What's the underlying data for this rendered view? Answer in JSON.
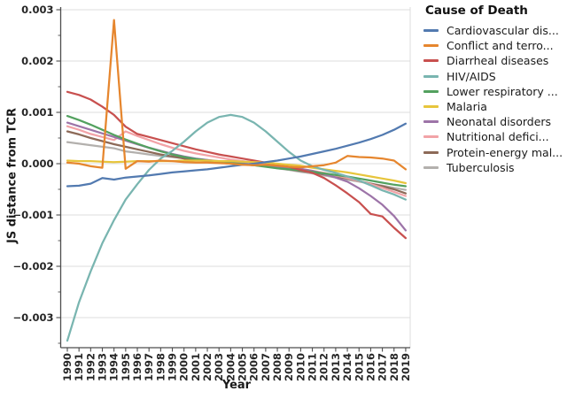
{
  "chart_data": {
    "type": "line",
    "title": "",
    "xlabel": "Year",
    "ylabel": "JS distance from TCR",
    "legend_title": "Cause of Death",
    "legend_position": "right",
    "grid": "horizontal",
    "background": "#ffffff",
    "gridline_color": "#dcdcdc",
    "spine_color": "#4d4d4d",
    "x": [
      1990,
      1991,
      1992,
      1993,
      1994,
      1995,
      1996,
      1997,
      1998,
      1999,
      2000,
      2001,
      2002,
      2003,
      2004,
      2005,
      2006,
      2007,
      2008,
      2009,
      2010,
      2011,
      2012,
      2013,
      2014,
      2015,
      2016,
      2017,
      2018,
      2019
    ],
    "x_tick_labels": [
      "1990",
      "1991",
      "1992",
      "1993",
      "1994",
      "1995",
      "1996",
      "1997",
      "1998",
      "1999",
      "2000",
      "2001",
      "2002",
      "2003",
      "2004",
      "2005",
      "2006",
      "2007",
      "2008",
      "2009",
      "2010",
      "2011",
      "2012",
      "2013",
      "2014",
      "2015",
      "2016",
      "2017",
      "2018",
      "2019"
    ],
    "y_ticks": [
      0.003,
      0.002,
      0.001,
      0.0,
      -0.001,
      -0.002,
      -0.003
    ],
    "y_tick_labels": [
      "0.003",
      "0.002",
      "0.001",
      "0.000",
      "−0.001",
      "−0.002",
      "−0.003"
    ],
    "y_minor_ticks": [
      0.0025,
      0.0015,
      0.0005,
      -0.0005,
      -0.0015,
      -0.0025,
      -0.0035
    ],
    "ylim": [
      -0.0036,
      0.00305
    ],
    "series": [
      {
        "name": "Cardiovascular dis...",
        "color": "#527ab0",
        "values": [
          -0.00044,
          -0.00043,
          -0.00039,
          -0.00028,
          -0.00031,
          -0.00027,
          -0.00025,
          -0.00023,
          -0.0002,
          -0.00017,
          -0.00015,
          -0.00013,
          -0.00011,
          -8e-05,
          -5e-05,
          -2e-05,
          0.0,
          3e-05,
          6e-05,
          0.0001,
          0.00014,
          0.00019,
          0.00024,
          0.00029,
          0.00035,
          0.00041,
          0.00048,
          0.00056,
          0.00066,
          0.00078
        ]
      },
      {
        "name": "Conflict and terro...",
        "color": "#e6862e",
        "values": [
          2e-05,
          0.0,
          -5e-05,
          -8e-05,
          0.0028,
          -0.0001,
          5e-05,
          4e-05,
          6e-05,
          5e-05,
          3e-05,
          2e-05,
          2e-05,
          1e-05,
          0.0,
          -2e-05,
          -3e-05,
          -2e-05,
          -4e-05,
          -6e-05,
          -7e-05,
          -5e-05,
          -3e-05,
          2e-05,
          0.00015,
          0.00013,
          0.00012,
          0.0001,
          6e-05,
          -0.00011
        ]
      },
      {
        "name": "Diarrheal diseases",
        "color": "#c8504f",
        "values": [
          0.0014,
          0.00134,
          0.00125,
          0.00111,
          0.00095,
          0.00072,
          0.00058,
          0.00052,
          0.00046,
          0.0004,
          0.00034,
          0.00028,
          0.00023,
          0.00018,
          0.00014,
          0.0001,
          6e-05,
          2e-05,
          -2e-05,
          -6e-05,
          -0.00012,
          -0.00018,
          -0.00028,
          -0.00042,
          -0.00058,
          -0.00075,
          -0.00098,
          -0.00103,
          -0.00125,
          -0.00145
        ]
      },
      {
        "name": "HIV/AIDS",
        "color": "#79b5b0",
        "values": [
          -0.00345,
          -0.0027,
          -0.0021,
          -0.00155,
          -0.0011,
          -0.0007,
          -0.0004,
          -0.00012,
          0.0001,
          0.00025,
          0.00043,
          0.00063,
          0.0008,
          0.00091,
          0.00095,
          0.00091,
          0.0008,
          0.00063,
          0.00043,
          0.00023,
          6e-05,
          -5e-05,
          -0.00012,
          -0.00018,
          -0.00025,
          -0.00033,
          -0.00042,
          -0.00052,
          -0.0006,
          -0.0007
        ]
      },
      {
        "name": "Lower respiratory ...",
        "color": "#53a15f",
        "values": [
          0.00093,
          0.00085,
          0.00076,
          0.00066,
          0.00056,
          0.00047,
          0.00039,
          0.00031,
          0.00024,
          0.00018,
          0.00013,
          9e-05,
          6e-05,
          3e-05,
          1e-05,
          -1e-05,
          -3e-05,
          -6e-05,
          -9e-05,
          -0.00011,
          -0.00013,
          -0.00016,
          -0.00019,
          -0.00022,
          -0.00025,
          -0.00029,
          -0.00033,
          -0.00037,
          -0.00041,
          -0.00044
        ]
      },
      {
        "name": "Malaria",
        "color": "#e7c53c",
        "values": [
          6e-05,
          5e-05,
          5e-05,
          4e-05,
          3e-05,
          4e-05,
          5e-05,
          5e-05,
          5e-05,
          5e-05,
          6e-05,
          6e-05,
          6e-05,
          5e-05,
          5e-05,
          4e-05,
          3e-05,
          2e-05,
          0.0,
          -2e-05,
          -4e-05,
          -8e-05,
          -0.00011,
          -0.00014,
          -0.00017,
          -0.00021,
          -0.00025,
          -0.00029,
          -0.00033,
          -0.00038
        ]
      },
      {
        "name": "Neonatal disorders",
        "color": "#9d74a8",
        "values": [
          0.0008,
          0.00073,
          0.00066,
          0.00059,
          0.00052,
          0.00045,
          0.00038,
          0.00031,
          0.00025,
          0.00019,
          0.00014,
          0.0001,
          7e-05,
          4e-05,
          2e-05,
          0.0,
          -2e-05,
          -4e-05,
          -6e-05,
          -8e-05,
          -0.0001,
          -0.00014,
          -0.0002,
          -0.00027,
          -0.00035,
          -0.00048,
          -0.00063,
          -0.0008,
          -0.00102,
          -0.0013
        ]
      },
      {
        "name": "Nutritional defici...",
        "color": "#f2a3a7",
        "values": [
          0.00073,
          0.00066,
          0.00058,
          0.00052,
          0.00046,
          0.00063,
          0.00054,
          0.00046,
          0.00038,
          0.00031,
          0.00025,
          0.0002,
          0.00016,
          0.00012,
          8e-05,
          5e-05,
          2e-05,
          -1e-05,
          -4e-05,
          -7e-05,
          -0.0001,
          -0.00014,
          -0.00018,
          -0.00023,
          -0.00028,
          -0.00034,
          -0.0004,
          -0.00047,
          -0.00055,
          -0.00063
        ]
      },
      {
        "name": "Protein-energy mal...",
        "color": "#8d6a58",
        "values": [
          0.00063,
          0.00057,
          0.0005,
          0.00044,
          0.00038,
          0.00033,
          0.00028,
          0.00023,
          0.00018,
          0.00014,
          0.0001,
          7e-05,
          5e-05,
          3e-05,
          1e-05,
          -1e-05,
          -3e-05,
          -5e-05,
          -8e-05,
          -0.00011,
          -0.00014,
          -0.00017,
          -0.00021,
          -0.00025,
          -0.00029,
          -0.00034,
          -0.00039,
          -0.00044,
          -0.0005,
          -0.00058
        ]
      },
      {
        "name": "Tuberculosis",
        "color": "#b3b0ad",
        "values": [
          0.00042,
          0.00039,
          0.00036,
          0.00033,
          0.0003,
          0.00024,
          0.00021,
          0.00018,
          0.00015,
          0.00013,
          0.00011,
          9e-05,
          7e-05,
          5e-05,
          3e-05,
          1e-05,
          -2e-05,
          -5e-05,
          -9e-05,
          -0.00012,
          -0.00016,
          -0.00019,
          -0.00023,
          -0.00027,
          -0.00031,
          -0.00035,
          -0.00039,
          -0.00043,
          -0.00047,
          -0.00051
        ]
      }
    ]
  }
}
